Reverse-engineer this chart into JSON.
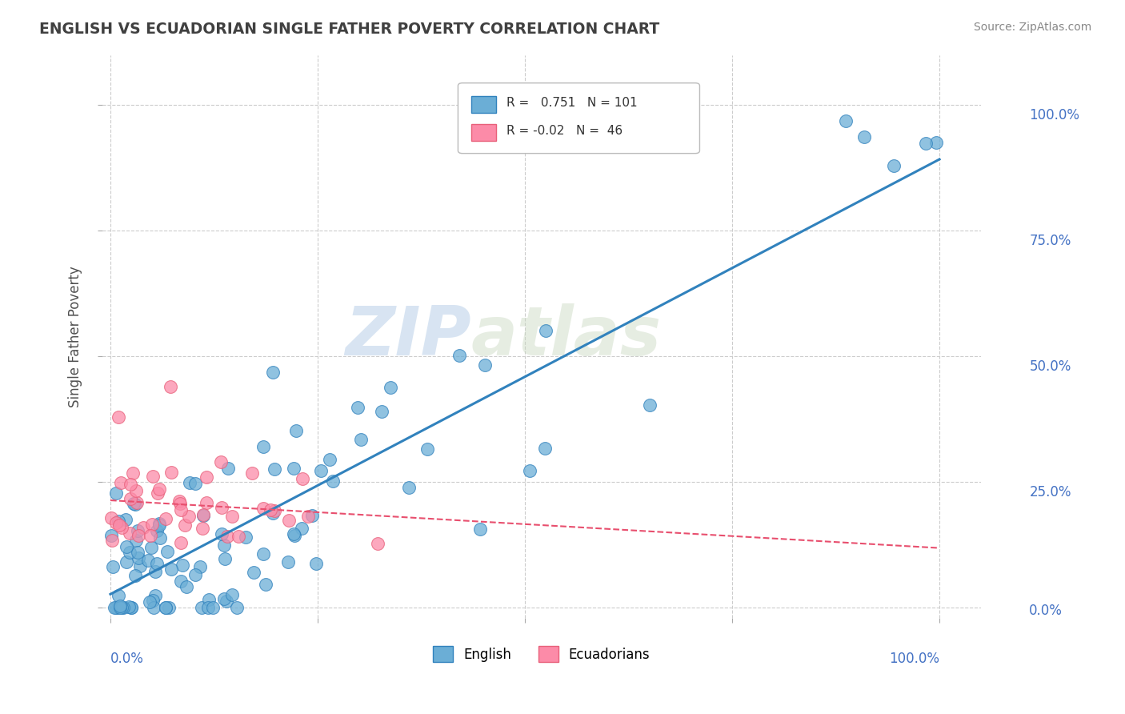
{
  "title": "ENGLISH VS ECUADORIAN SINGLE FATHER POVERTY CORRELATION CHART",
  "source": "Source: ZipAtlas.com",
  "ylabel": "Single Father Poverty",
  "legend_english": "English",
  "legend_ecuadorians": "Ecuadorians",
  "r_english": 0.751,
  "n_english": 101,
  "r_ecuadorian": -0.02,
  "n_ecuadorian": 46,
  "english_color": "#6baed6",
  "ecuadorian_color": "#fc8ba8",
  "english_line_color": "#3182bd",
  "ecuadorian_line_color": "#e84f6e",
  "watermark_zip": "ZIP",
  "watermark_atlas": "atlas",
  "background_color": "#ffffff",
  "grid_color": "#cccccc",
  "title_color": "#404040",
  "axis_label_color": "#4472c4"
}
